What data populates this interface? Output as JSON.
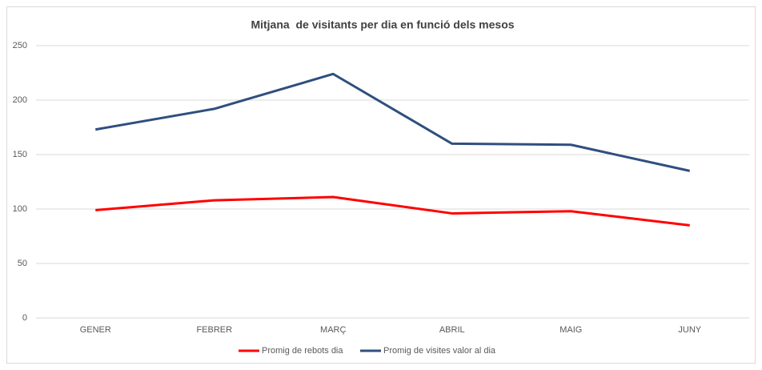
{
  "chart_data": {
    "type": "line",
    "title": "Mitjana  de visitants per dia en funció dels mesos",
    "categories": [
      "GENER",
      "FEBRER",
      "MARÇ",
      "ABRIL",
      "MAIG",
      "JUNY"
    ],
    "series": [
      {
        "name": "Promig de rebots dia",
        "color": "#ff0000",
        "values": [
          99,
          108,
          111,
          96,
          98,
          85
        ]
      },
      {
        "name": "Promig de visites valor al dia",
        "color": "#2f4f7f",
        "values": [
          173,
          192,
          224,
          160,
          159,
          135
        ]
      }
    ],
    "ylim": [
      0,
      250
    ],
    "yticks": [
      0,
      50,
      100,
      150,
      200,
      250
    ],
    "grid": true,
    "legend": "bottom"
  }
}
